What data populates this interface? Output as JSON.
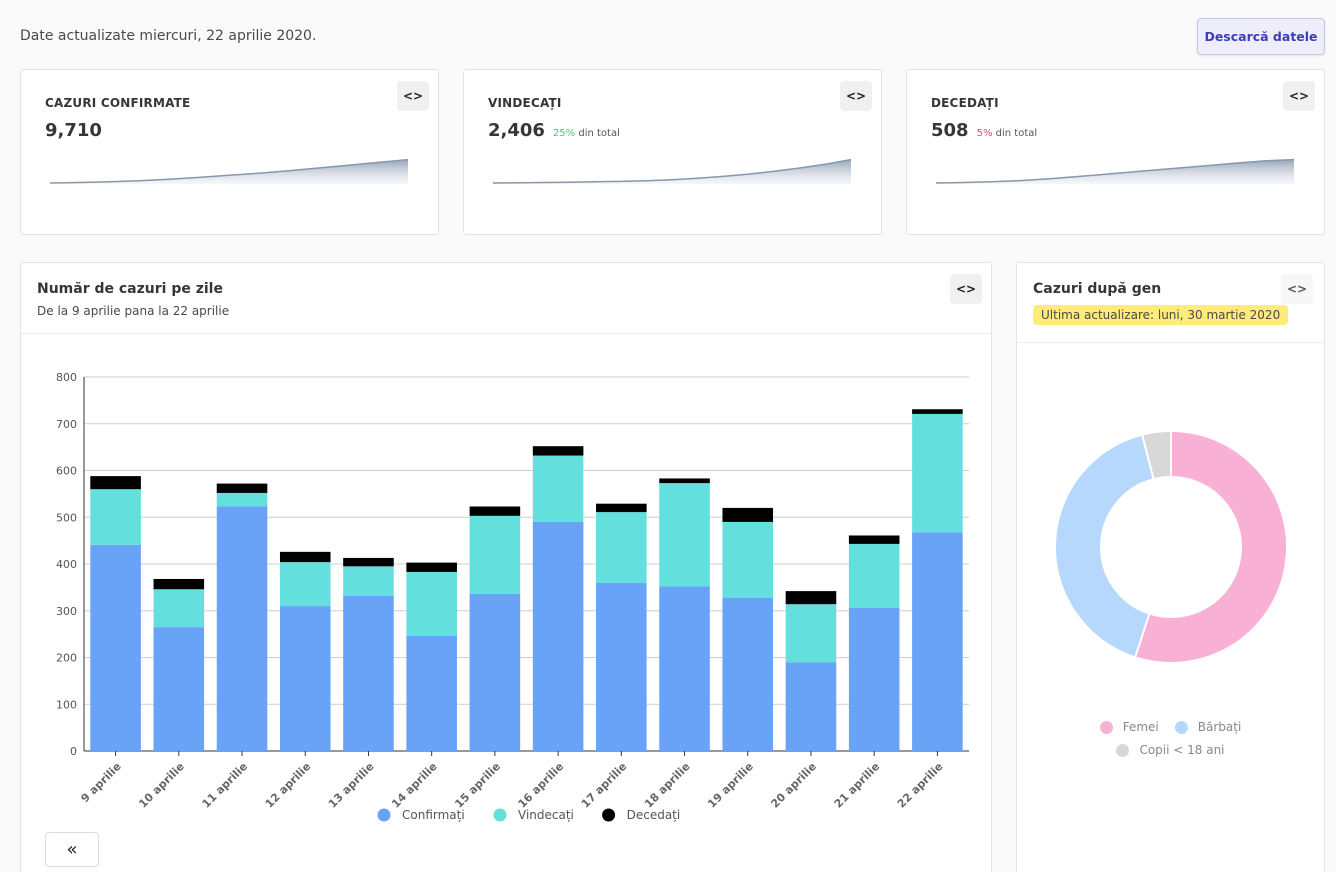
{
  "header": {
    "updated_text": "Date actualizate miercuri, 22 aprilie 2020.",
    "download_label": "Descarcă datele"
  },
  "embed_icon": "<>",
  "kpis": [
    {
      "title": "CAZURI CONFIRMATE",
      "value": "9,710",
      "pct": "",
      "pct_suffix": "",
      "icon": "code-icon",
      "trend": [
        0,
        2,
        5,
        10,
        16,
        24,
        33,
        42,
        52,
        64,
        76,
        88,
        100
      ]
    },
    {
      "title": "VINDECAȚI",
      "value": "2,406",
      "pct": "25%",
      "pct_suffix": " din total",
      "pct_color": "#48c774",
      "icon": "code-icon",
      "trend": [
        0,
        1,
        2,
        3,
        5,
        7,
        10,
        14,
        20,
        28,
        38,
        50,
        64,
        80,
        100
      ]
    },
    {
      "title": "DECEDAȚI",
      "value": "508",
      "pct": "5%",
      "pct_suffix": " din total",
      "pct_color": "#f14668",
      "icon": "code-icon",
      "trend": [
        0,
        2,
        5,
        10,
        17,
        26,
        36,
        46,
        56,
        66,
        76,
        86,
        95,
        100
      ]
    }
  ],
  "daily_chart": {
    "title": "Număr de cazuri pe zile",
    "subtitle": "De la 9 aprilie pana la 22 aprilie",
    "back_icon": "«"
  },
  "gender_chart": {
    "title": "Cazuri după gen",
    "badge": "Ultima actualizare: luni, 30 martie 2020"
  },
  "chart_data": [
    {
      "type": "bar",
      "stacked": true,
      "categories": [
        "9 aprilie",
        "10 aprilie",
        "11 aprilie",
        "12 aprilie",
        "13 aprilie",
        "14 aprilie",
        "15 aprilie",
        "16 aprilie",
        "17 aprilie",
        "18 aprilie",
        "19 aprilie",
        "20 aprilie",
        "21 aprilie",
        "22 aprilie"
      ],
      "series": [
        {
          "name": "Confirmați",
          "color": "#68a3f8",
          "values": [
            441,
            265,
            523,
            310,
            332,
            246,
            336,
            490,
            360,
            352,
            328,
            190,
            306,
            468
          ]
        },
        {
          "name": "Vindecați",
          "color": "#63e0de",
          "values": [
            119,
            81,
            29,
            94,
            63,
            137,
            167,
            142,
            151,
            221,
            162,
            124,
            137,
            253
          ]
        },
        {
          "name": "Decedați",
          "color": "#000000",
          "values": [
            28,
            22,
            20,
            22,
            18,
            20,
            20,
            20,
            18,
            10,
            30,
            28,
            18,
            10
          ]
        }
      ],
      "ylim": [
        0,
        800
      ],
      "yticks": [
        0,
        100,
        200,
        300,
        400,
        500,
        600,
        700,
        800
      ],
      "grid": true,
      "legend": "bottom"
    },
    {
      "type": "pie",
      "donut": true,
      "series": [
        {
          "name": "Femei",
          "color": "#f8b1d4",
          "value": 55
        },
        {
          "name": "Bărbați",
          "color": "#b5d8fc",
          "value": 41
        },
        {
          "name": "Copii < 18 ani",
          "color": "#d8d8d8",
          "value": 4
        }
      ],
      "legend": "bottom"
    }
  ]
}
